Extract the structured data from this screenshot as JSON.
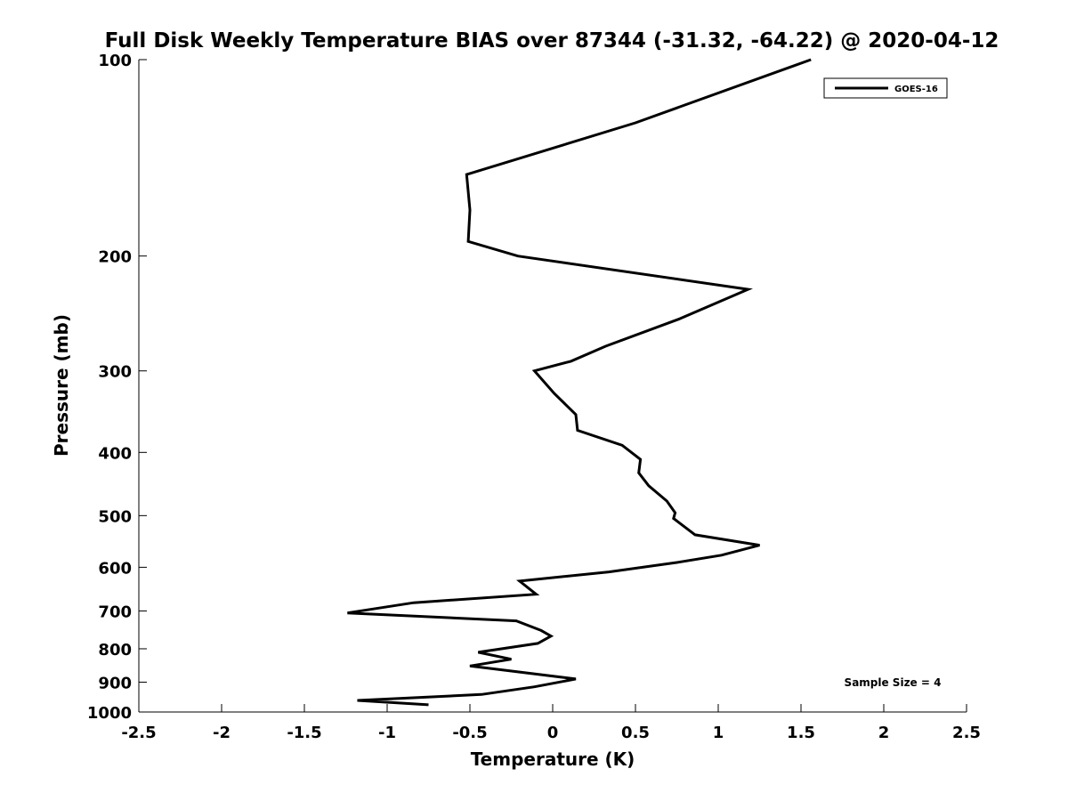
{
  "chart_data": {
    "type": "line",
    "title": "Full Disk Weekly Temperature BIAS over 87344 (-31.32, -64.22) @ 2020-04-12",
    "xlabel": "Temperature (K)",
    "ylabel": "Pressure (mb)",
    "xlim": [
      -2.5,
      2.5
    ],
    "ylim": [
      100,
      1000
    ],
    "y_scale": "log",
    "y_reversed": true,
    "x_ticks": [
      -2.5,
      -2,
      -1.5,
      -1,
      -0.5,
      0,
      0.5,
      1,
      1.5,
      2,
      2.5
    ],
    "x_tick_labels": [
      "-2.5",
      "-2",
      "-1.5",
      "-1",
      "-0.5",
      "0",
      "0.5",
      "1",
      "1.5",
      "2",
      "2.5"
    ],
    "y_ticks": [
      100,
      200,
      300,
      400,
      500,
      600,
      700,
      800,
      900,
      1000
    ],
    "y_tick_labels": [
      "100",
      "200",
      "300",
      "400",
      "500",
      "600",
      "700",
      "800",
      "900",
      "1000"
    ],
    "grid": false,
    "legend_position": "top-right",
    "series": [
      {
        "name": "GOES-16",
        "color": "#000000",
        "points": [
          [
            1.56,
            100
          ],
          [
            0.5,
            125
          ],
          [
            -0.52,
            150
          ],
          [
            -0.5,
            170
          ],
          [
            -0.51,
            190
          ],
          [
            -0.21,
            200
          ],
          [
            1.18,
            225
          ],
          [
            0.76,
            250
          ],
          [
            0.32,
            275
          ],
          [
            0.11,
            290
          ],
          [
            -0.11,
            300
          ],
          [
            0.01,
            325
          ],
          [
            0.14,
            350
          ],
          [
            0.15,
            370
          ],
          [
            0.42,
            390
          ],
          [
            0.53,
            410
          ],
          [
            0.52,
            430
          ],
          [
            0.58,
            450
          ],
          [
            0.69,
            475
          ],
          [
            0.74,
            495
          ],
          [
            0.73,
            505
          ],
          [
            0.86,
            535
          ],
          [
            1.25,
            555
          ],
          [
            1.02,
            575
          ],
          [
            0.75,
            590
          ],
          [
            0.34,
            610
          ],
          [
            -0.2,
            630
          ],
          [
            -0.1,
            660
          ],
          [
            -0.84,
            680
          ],
          [
            -1.24,
            705
          ],
          [
            -0.22,
            725
          ],
          [
            -0.07,
            750
          ],
          [
            -0.01,
            765
          ],
          [
            -0.09,
            785
          ],
          [
            -0.45,
            810
          ],
          [
            -0.25,
            830
          ],
          [
            -0.5,
            850
          ],
          [
            0.14,
            890
          ],
          [
            -0.11,
            915
          ],
          [
            -0.43,
            940
          ],
          [
            -1.18,
            960
          ],
          [
            -0.75,
            975
          ]
        ]
      }
    ],
    "annotation": "Sample Size = 4"
  }
}
